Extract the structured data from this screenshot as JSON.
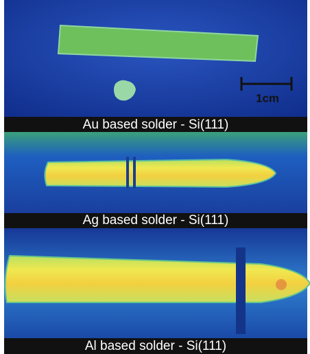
{
  "panels": [
    {
      "caption": "Au based solder - Si(111)"
    },
    {
      "caption": "Ag based solder - Si(111)"
    },
    {
      "caption": "Al based solder - Si(111)"
    }
  ],
  "scale_bar": {
    "label": "1cm"
  }
}
